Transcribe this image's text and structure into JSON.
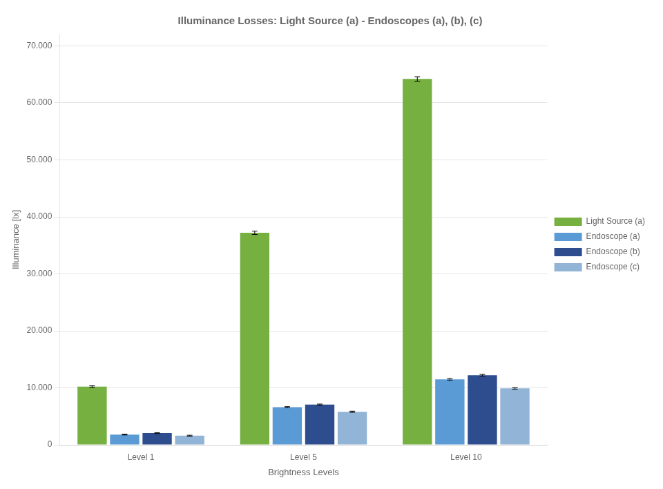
{
  "chart_data": {
    "type": "bar",
    "title": "Illuminance Losses: Light Source (a) - Endoscopes (a), (b), (c)",
    "xlabel": "Brightness Levels",
    "ylabel": "Illuminance [lx]",
    "categories": [
      "Level 1",
      "Level 5",
      "Level 10"
    ],
    "series": [
      {
        "name": "Light Source (a)",
        "color": "#76b041",
        "values": [
          10200,
          37200,
          64200
        ],
        "errors": [
          150,
          300,
          400
        ]
      },
      {
        "name": "Endoscope (a)",
        "color": "#5b9bd5",
        "values": [
          1800,
          6600,
          11500
        ],
        "errors": [
          80,
          100,
          150
        ]
      },
      {
        "name": "Endoscope (b)",
        "color": "#2e4d8e",
        "values": [
          2050,
          7050,
          12200
        ],
        "errors": [
          80,
          100,
          150
        ]
      },
      {
        "name": "Endoscope (c)",
        "color": "#92b4d6",
        "values": [
          1600,
          5800,
          9900
        ],
        "errors": [
          80,
          100,
          130
        ]
      }
    ],
    "ylim": [
      0,
      72000
    ],
    "yticks": [
      0,
      {
        "value": 10000,
        "label": "10.000"
      },
      {
        "value": 20000,
        "label": "20.000"
      },
      {
        "value": 30000,
        "label": "30.000"
      },
      {
        "value": 40000,
        "label": "40.000"
      },
      {
        "value": 50000,
        "label": "50.000"
      },
      {
        "value": 60000,
        "label": "60.000"
      },
      {
        "value": 70000,
        "label": "70.000"
      }
    ],
    "grid": true,
    "legend": "right"
  }
}
